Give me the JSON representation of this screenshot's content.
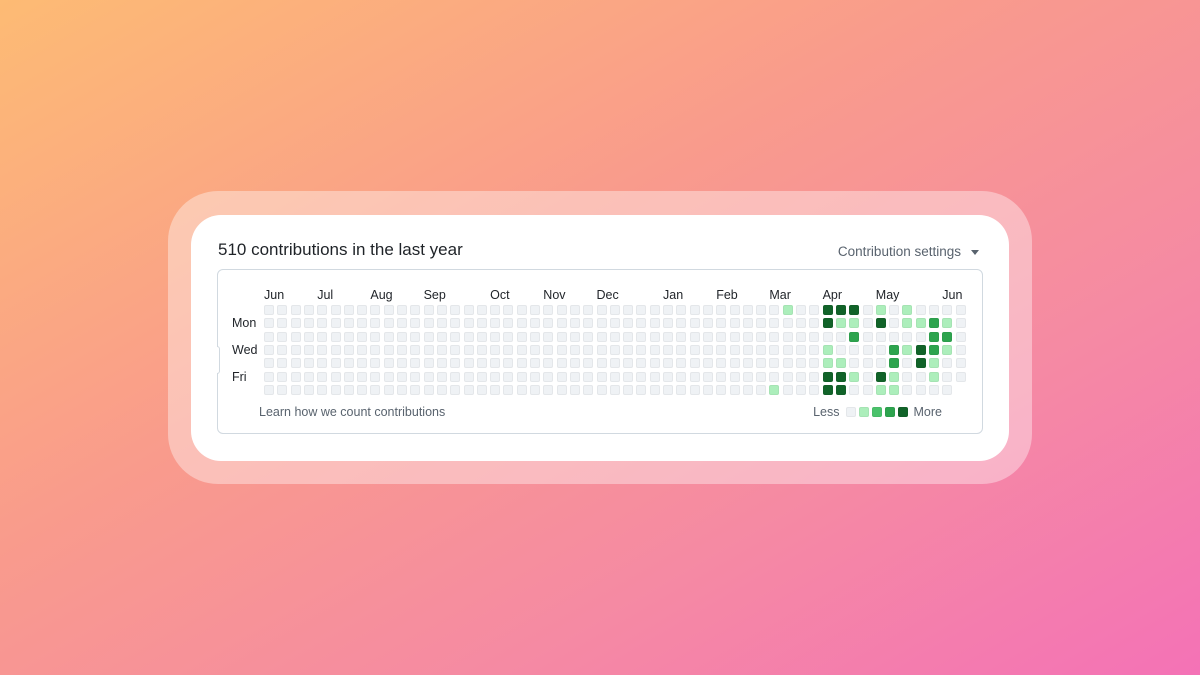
{
  "header": {
    "title": "510 contributions in the last year",
    "settings_label": "Contribution settings"
  },
  "months": [
    "Jun",
    "Jul",
    "Aug",
    "Sep",
    "Oct",
    "Nov",
    "Dec",
    "Jan",
    "Feb",
    "Mar",
    "Apr",
    "May",
    "Jun"
  ],
  "month_start_weeks": [
    0,
    4,
    8,
    12,
    17,
    21,
    25,
    30,
    34,
    38,
    42,
    46,
    51
  ],
  "days": [
    "Mon",
    "Wed",
    "Fri"
  ],
  "day_rows": [
    1,
    3,
    5
  ],
  "colors": {
    "level0": "#eff2f5",
    "level1": "#aceebb",
    "level2": "#4ac26b",
    "level3": "#2da44e",
    "level4": "#116329"
  },
  "chart_data": {
    "type": "heatmap",
    "weeks": 53,
    "rows": 7,
    "last_week_days": 6,
    "levels": {
      "39": [
        1,
        0,
        0,
        0,
        0,
        0,
        0
      ],
      "38": [
        0,
        0,
        0,
        0,
        0,
        0,
        1
      ],
      "42": [
        4,
        4,
        0,
        1,
        1,
        4,
        4
      ],
      "43": [
        4,
        1,
        0,
        0,
        1,
        4,
        4
      ],
      "44": [
        4,
        1,
        3,
        0,
        0,
        1,
        0
      ],
      "46": [
        1,
        4,
        0,
        0,
        0,
        4,
        1
      ],
      "47": [
        0,
        0,
        0,
        3,
        3,
        1,
        1
      ],
      "48": [
        1,
        1,
        0,
        1,
        0,
        0,
        0
      ],
      "49": [
        0,
        1,
        0,
        4,
        4,
        0,
        0
      ],
      "50": [
        0,
        3,
        3,
        3,
        1,
        1,
        0
      ],
      "51": [
        0,
        1,
        3,
        1,
        0,
        0,
        0
      ]
    }
  },
  "footer": {
    "learn_link": "Learn how we count contributions",
    "legend_less": "Less",
    "legend_more": "More"
  }
}
